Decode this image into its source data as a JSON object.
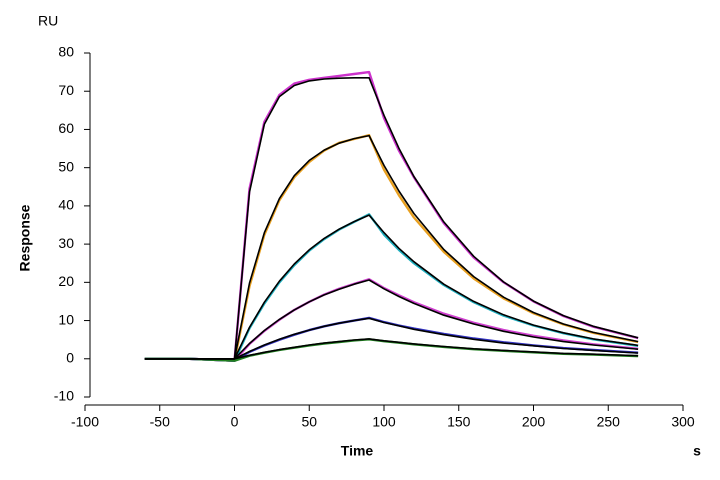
{
  "chart_data": {
    "type": "line",
    "y_unit": "RU",
    "ylabel": "Response",
    "xlabel": "Time",
    "x_unit": "s",
    "x": [
      -60,
      -30,
      0,
      10,
      20,
      30,
      40,
      50,
      60,
      70,
      80,
      90,
      100,
      110,
      120,
      140,
      160,
      180,
      200,
      220,
      240,
      270
    ],
    "series": [
      {
        "color": "#cc33cc",
        "values": [
          0,
          0,
          -0.5,
          44.5,
          62,
          69,
          72,
          73,
          73.5,
          74,
          74.5,
          75,
          63,
          54.5,
          47.5,
          35.5,
          26.5,
          20,
          15,
          11.2,
          8.4,
          5.4
        ]
      },
      {
        "color": "#e8a020",
        "values": [
          0,
          0,
          -0.5,
          19,
          32.5,
          41.5,
          47.5,
          51.5,
          54.5,
          56.5,
          57.5,
          58.5,
          49.5,
          42.8,
          37,
          28,
          21,
          15.8,
          11.9,
          9,
          6.8,
          4.4
        ]
      },
      {
        "color": "#20b0c0",
        "values": [
          0,
          0,
          -0.5,
          8,
          14.5,
          20,
          24.5,
          28.3,
          31.3,
          33.8,
          35.8,
          37.8,
          32.5,
          28.5,
          25,
          19.3,
          14.8,
          11.3,
          8.7,
          6.7,
          5.1,
          3.4
        ]
      },
      {
        "color": "#d040d0",
        "values": [
          0,
          0,
          -0.5,
          3.9,
          7.3,
          10.2,
          12.8,
          14.9,
          16.8,
          18.3,
          19.6,
          20.8,
          18.5,
          16.6,
          14.8,
          11.8,
          9.4,
          7.5,
          6,
          4.8,
          3.8,
          2.6
        ]
      },
      {
        "color": "#3030c0",
        "values": [
          0,
          0,
          -0.5,
          1.8,
          3.5,
          5,
          6.3,
          7.5,
          8.5,
          9.3,
          10,
          10.7,
          9.6,
          8.7,
          7.9,
          6.5,
          5.3,
          4.3,
          3.5,
          2.8,
          2.3,
          1.6
        ]
      },
      {
        "color": "#208020",
        "values": [
          0,
          0,
          -0.5,
          0.8,
          1.6,
          2.3,
          2.9,
          3.5,
          4,
          4.4,
          4.8,
          5.1,
          4.6,
          4.2,
          3.8,
          3.1,
          2.5,
          2.1,
          1.7,
          1.3,
          1.1,
          0.7
        ]
      },
      {
        "color": "#000000",
        "values": [
          0,
          0,
          0,
          43.6,
          61.4,
          68.6,
          71.5,
          72.7,
          73.2,
          73.4,
          73.5,
          73.5,
          63.7,
          55.1,
          47.7,
          35.8,
          26.8,
          20.1,
          15.1,
          11.3,
          8.5,
          5.5
        ]
      },
      {
        "color": "#000000",
        "values": [
          0,
          0,
          0,
          19.8,
          33,
          41.9,
          47.9,
          51.9,
          54.6,
          56.4,
          57.6,
          58.4,
          50.6,
          43.9,
          38,
          28.6,
          21.5,
          16.1,
          12.1,
          9.1,
          6.9,
          4.5
        ]
      },
      {
        "color": "#000000",
        "values": [
          0,
          0,
          0,
          8.2,
          14.8,
          20.3,
          24.8,
          28.5,
          31.5,
          33.9,
          35.9,
          37.6,
          33,
          28.9,
          25.4,
          19.5,
          15,
          11.5,
          8.8,
          6.8,
          5.2,
          3.5
        ]
      },
      {
        "color": "#000000",
        "values": [
          0,
          0,
          0,
          4,
          7.4,
          10.3,
          12.8,
          14.9,
          16.7,
          18.2,
          19.5,
          20.6,
          18.3,
          16.3,
          14.5,
          11.4,
          9.1,
          7.2,
          5.7,
          4.5,
          3.6,
          2.5
        ]
      },
      {
        "color": "#000000",
        "values": [
          0,
          0,
          0,
          1.9,
          3.6,
          5.1,
          6.4,
          7.5,
          8.5,
          9.3,
          10,
          10.6,
          9.5,
          8.6,
          7.7,
          6.3,
          5.1,
          4.1,
          3.4,
          2.7,
          2.2,
          1.5
        ]
      },
      {
        "color": "#000000",
        "values": [
          0,
          0,
          0,
          0.9,
          1.7,
          2.4,
          3,
          3.6,
          4.1,
          4.5,
          4.9,
          5.2,
          4.7,
          4.3,
          3.9,
          3.2,
          2.6,
          2.2,
          1.8,
          1.4,
          1.2,
          0.8
        ]
      }
    ],
    "xlim": [
      -100,
      300
    ],
    "xticks": [
      -100,
      -50,
      0,
      50,
      100,
      150,
      200,
      250,
      300
    ],
    "ylim": [
      -10,
      80
    ],
    "yticks": [
      -10,
      0,
      10,
      20,
      30,
      40,
      50,
      60,
      70,
      80
    ],
    "grid": false
  }
}
